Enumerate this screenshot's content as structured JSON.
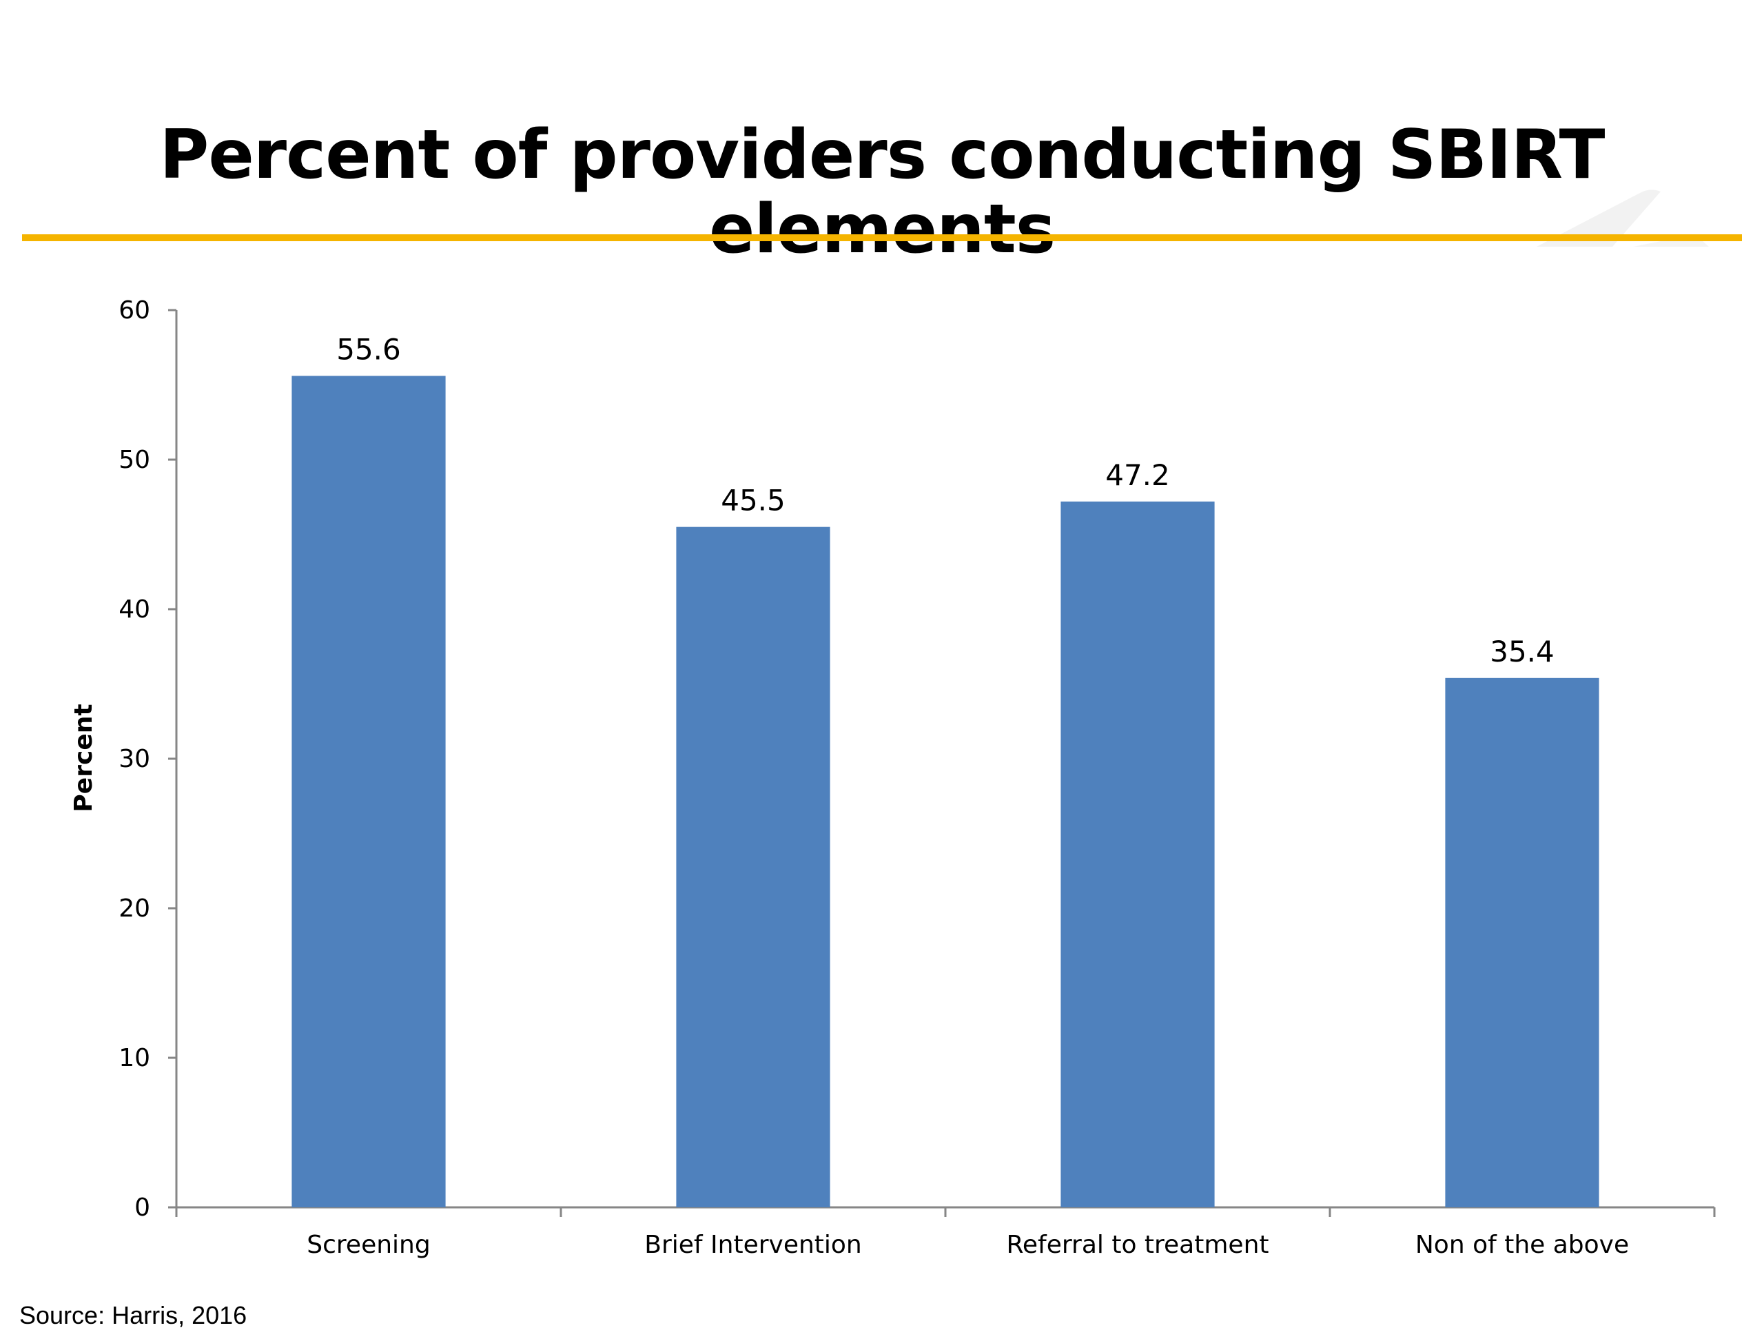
{
  "slide": {
    "title": "Percent of providers conducting SBIRT elements",
    "source": "Source: Harris, 2016",
    "accent_color": "#f5b400"
  },
  "chart_data": {
    "type": "bar",
    "title": "",
    "xlabel": "",
    "ylabel": "Percent",
    "categories": [
      "Screening",
      "Brief Intervention",
      "Referral to treatment",
      "Non of the above"
    ],
    "values": [
      55.6,
      45.5,
      47.2,
      35.4
    ],
    "value_labels": [
      "55.6",
      "45.5",
      "47.2",
      "35.4"
    ],
    "ylim": [
      0,
      60
    ],
    "yticks": [
      0,
      10,
      20,
      30,
      40,
      50,
      60
    ],
    "grid": false,
    "legend": "none",
    "bar_color": "#4f81bd"
  }
}
